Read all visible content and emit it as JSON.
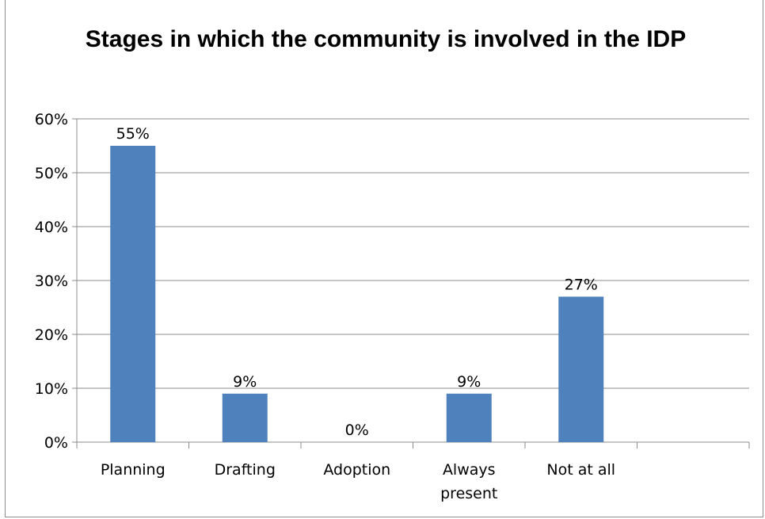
{
  "chart_data": {
    "type": "bar",
    "title": "Stages in which the  community is involved in the IDP",
    "categories": [
      "Planning",
      "Drafting",
      "Adoption",
      "Always present",
      "Not at all",
      ""
    ],
    "values": [
      55,
      9,
      0,
      9,
      27,
      null
    ],
    "data_labels": [
      "55%",
      "9%",
      "0%",
      "9%",
      "27%",
      ""
    ],
    "y_ticks": [
      "0%",
      "10%",
      "20%",
      "30%",
      "40%",
      "50%",
      "60%"
    ],
    "ylim": [
      0,
      60
    ],
    "xlabel": "",
    "ylabel": "",
    "grid": true,
    "legend": "none",
    "bar_color": "#4f81bd"
  }
}
